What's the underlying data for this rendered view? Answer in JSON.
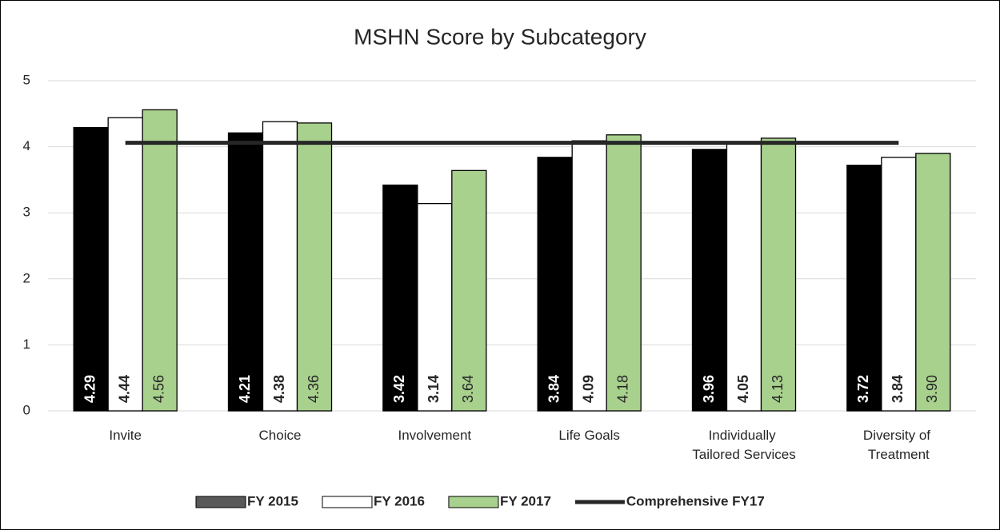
{
  "chart_data": {
    "type": "bar",
    "title": "MSHN Score by Subcategory",
    "categories": [
      "Invite",
      "Choice",
      "Involvement",
      "Life Goals",
      "Individually Tailored Services",
      "Diversity of Treatment"
    ],
    "series": [
      {
        "name": "FY 2015",
        "color": "#000000",
        "values": [
          4.29,
          4.21,
          3.42,
          3.84,
          3.96,
          3.72
        ],
        "value_labels": [
          "4.29",
          "4.21",
          "3.42",
          "3.84",
          "3.96",
          "3.72"
        ]
      },
      {
        "name": "FY 2016",
        "color": "#ffffff",
        "values": [
          4.44,
          4.38,
          3.14,
          4.09,
          4.05,
          3.84
        ],
        "value_labels": [
          "4.44",
          "4.38",
          "3.14",
          "4.09",
          "4.05",
          "3.84"
        ]
      },
      {
        "name": "FY 2017",
        "color": "#a9d18e",
        "values": [
          4.56,
          4.36,
          3.64,
          4.18,
          4.13,
          3.9
        ],
        "value_labels": [
          "4.56",
          "4.36",
          "3.64",
          "4.18",
          "4.13",
          "3.90"
        ]
      },
      {
        "name": "Comprehensive FY17",
        "color": "#262626",
        "type": "line",
        "values": [
          4.06,
          4.06,
          4.06,
          4.06,
          4.06,
          4.06
        ]
      }
    ],
    "ylim": [
      0,
      5
    ],
    "yticks": [
      0,
      1,
      2,
      3,
      4,
      5
    ],
    "grid": true,
    "legend": "bottom"
  }
}
